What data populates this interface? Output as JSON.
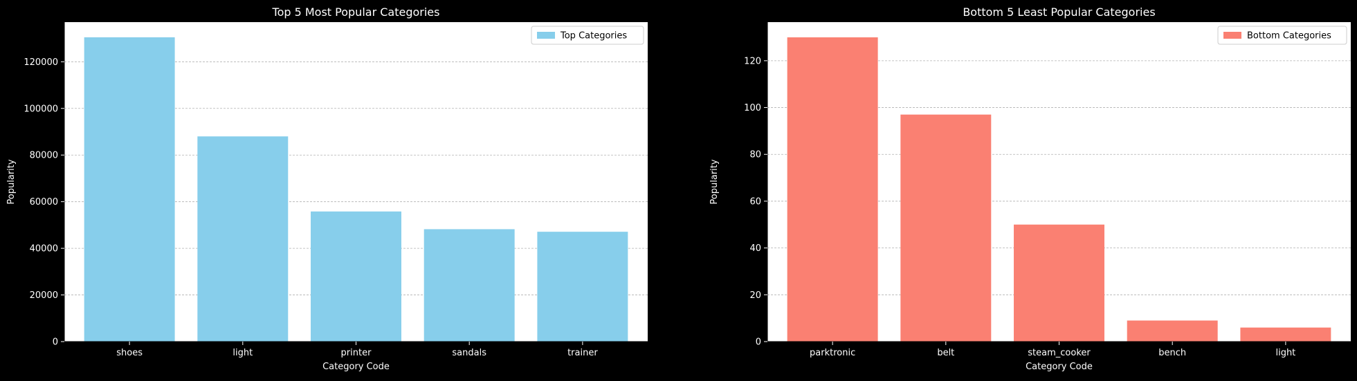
{
  "figure": {
    "background": "#000000",
    "text_color": "#ffffff",
    "plot_background": "#ffffff",
    "grid_color": "#b0b0b0"
  },
  "chart_data": [
    {
      "type": "bar",
      "title": "Top 5 Most Popular Categories",
      "xlabel": "Category Code",
      "ylabel": "Popularity",
      "categories": [
        "shoes",
        "light",
        "printer",
        "sandals",
        "trainer"
      ],
      "series": [
        {
          "name": "Top Categories",
          "values": [
            130500,
            88000,
            55800,
            48200,
            47100
          ],
          "color": "#87ceeb"
        }
      ],
      "ylim": [
        0,
        137000
      ],
      "yticks": [
        0,
        20000,
        40000,
        60000,
        80000,
        100000,
        120000
      ],
      "grid": "y",
      "legend": "top-right"
    },
    {
      "type": "bar",
      "title": "Bottom 5 Least Popular Categories",
      "xlabel": "Category Code",
      "ylabel": "Popularity",
      "categories": [
        "parktronic",
        "belt",
        "steam_cooker",
        "bench",
        "light"
      ],
      "series": [
        {
          "name": "Bottom Categories",
          "values": [
            130,
            97,
            50,
            9,
            6
          ],
          "color": "#fa8072"
        }
      ],
      "ylim": [
        0,
        136.5
      ],
      "yticks": [
        0,
        20,
        40,
        60,
        80,
        100,
        120
      ],
      "grid": "y",
      "legend": "top-right"
    }
  ]
}
